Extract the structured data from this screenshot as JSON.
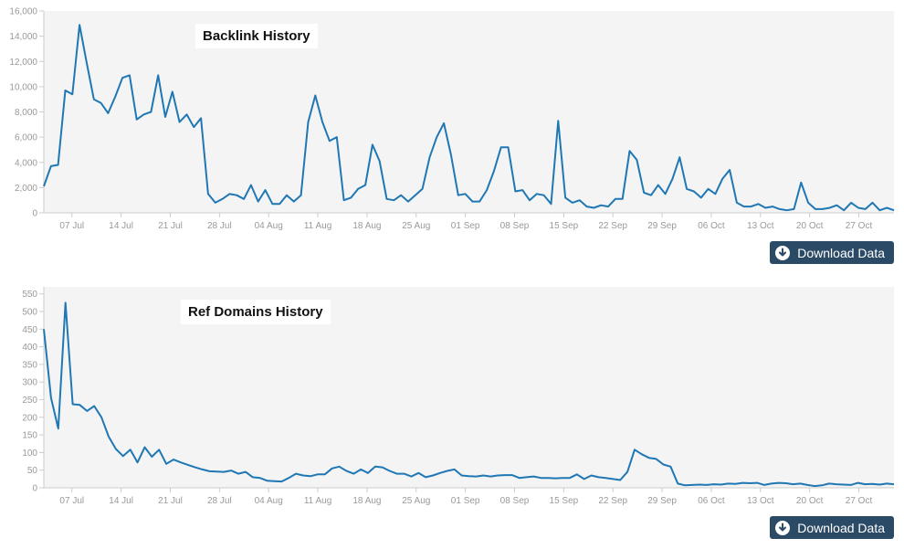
{
  "charts": [
    {
      "id": "backlinks",
      "title": "Backlink History",
      "download_label": "Download Data"
    },
    {
      "id": "refdomains",
      "title": "Ref Domains History",
      "download_label": "Download Data"
    }
  ],
  "colors": {
    "line": "#1f77b4",
    "plot_bg": "#f4f4f4",
    "axis": "#cccccc",
    "tick_text": "#999999",
    "button_bg": "#2b4a66",
    "button_text": "#ffffff"
  },
  "icons": {
    "download": "download-circle-icon"
  },
  "chart_data": [
    {
      "type": "line",
      "title": "Backlink History",
      "x_start": "2025-07-03",
      "x_end": "2025-11-01",
      "x_tick_labels": [
        "07 Jul",
        "14 Jul",
        "21 Jul",
        "28 Jul",
        "04 Aug",
        "11 Aug",
        "18 Aug",
        "25 Aug",
        "01 Sep",
        "08 Sep",
        "15 Sep",
        "22 Sep",
        "29 Sep",
        "06 Oct",
        "13 Oct",
        "20 Oct",
        "27 Oct"
      ],
      "y_ticks": [
        0,
        2000,
        4000,
        6000,
        8000,
        10000,
        12000,
        14000,
        16000
      ],
      "y_tick_labels": [
        "0",
        "2,000",
        "4,000",
        "6,000",
        "8,000",
        "10,000",
        "12,000",
        "14,000",
        "16,000"
      ],
      "ylim": [
        0,
        16000
      ],
      "grid": false,
      "series": [
        {
          "values": [
            2100,
            3700,
            3800,
            9700,
            9400,
            14900,
            11900,
            9000,
            8700,
            7900,
            9200,
            10700,
            10900,
            7400,
            7800,
            8000,
            10900,
            7600,
            9600,
            7200,
            7800,
            6800,
            7500,
            1500,
            800,
            1100,
            1500,
            1400,
            1100,
            2200,
            900,
            1800,
            700,
            700,
            1400,
            900,
            1400,
            7200,
            9300,
            7200,
            5700,
            6000,
            1000,
            1200,
            1900,
            2200,
            5400,
            4100,
            1100,
            1000,
            1400,
            900,
            1400,
            1900,
            4400,
            6000,
            7100,
            4600,
            1400,
            1500,
            900,
            900,
            1800,
            3300,
            5200,
            5200,
            1700,
            1800,
            1000,
            1500,
            1400,
            700,
            7300,
            1200,
            800,
            1000,
            500,
            400,
            600,
            500,
            1100,
            1100,
            4900,
            4200,
            1600,
            1400,
            2200,
            1500,
            2700,
            4400,
            1900,
            1700,
            1200,
            1900,
            1500,
            2700,
            3400,
            800,
            500,
            500,
            700,
            400,
            500,
            300,
            200,
            300,
            2400,
            800,
            300,
            300,
            400,
            600,
            200,
            800,
            400,
            300,
            800,
            200,
            400,
            200
          ]
        }
      ]
    },
    {
      "type": "line",
      "title": "Ref Domains History",
      "x_start": "2025-07-03",
      "x_end": "2025-11-01",
      "x_tick_labels": [
        "07 Jul",
        "14 Jul",
        "21 Jul",
        "28 Jul",
        "04 Aug",
        "11 Aug",
        "18 Aug",
        "25 Aug",
        "01 Sep",
        "08 Sep",
        "15 Sep",
        "22 Sep",
        "29 Sep",
        "06 Oct",
        "13 Oct",
        "20 Oct",
        "27 Oct"
      ],
      "y_ticks": [
        0,
        50,
        100,
        150,
        200,
        250,
        300,
        350,
        400,
        450,
        500,
        550
      ],
      "y_tick_labels": [
        "0",
        "50",
        "100",
        "150",
        "200",
        "250",
        "300",
        "350",
        "400",
        "450",
        "500",
        "550"
      ],
      "ylim": [
        0,
        570
      ],
      "grid": false,
      "series": [
        {
          "values": [
            450,
            255,
            168,
            525,
            237,
            235,
            218,
            232,
            200,
            145,
            110,
            90,
            108,
            72,
            115,
            88,
            108,
            68,
            80,
            72,
            65,
            58,
            52,
            47,
            46,
            45,
            49,
            40,
            45,
            30,
            28,
            20,
            19,
            18,
            28,
            40,
            35,
            33,
            38,
            38,
            55,
            60,
            48,
            40,
            52,
            42,
            60,
            58,
            48,
            40,
            40,
            32,
            42,
            30,
            35,
            42,
            48,
            52,
            35,
            33,
            32,
            35,
            32,
            35,
            36,
            36,
            28,
            30,
            32,
            28,
            28,
            27,
            28,
            28,
            38,
            25,
            35,
            30,
            28,
            25,
            22,
            45,
            108,
            95,
            85,
            82,
            66,
            60,
            12,
            7,
            8,
            9,
            8,
            10,
            9,
            12,
            11,
            14,
            13,
            14,
            8,
            12,
            14,
            13,
            10,
            12,
            8,
            5,
            7,
            12,
            10,
            9,
            8,
            14,
            10,
            11,
            9,
            12,
            10
          ]
        }
      ]
    }
  ]
}
